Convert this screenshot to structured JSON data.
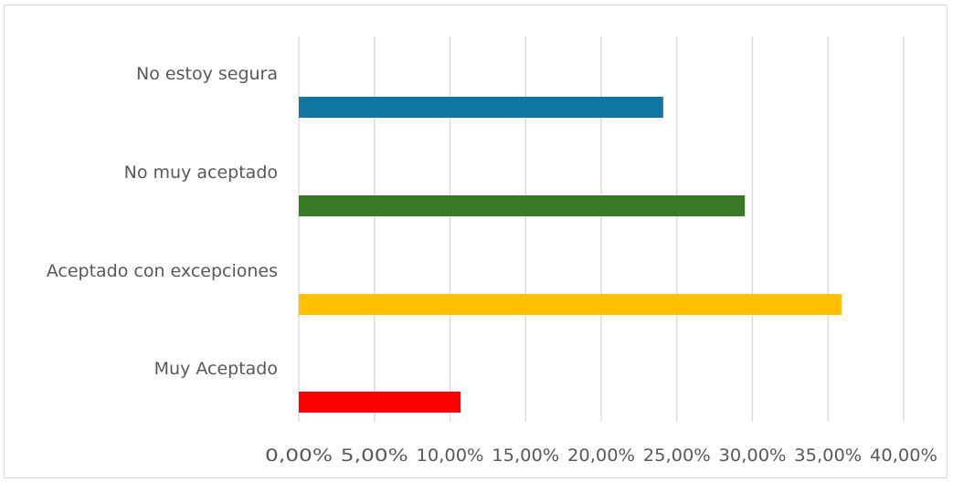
{
  "chart_data": {
    "type": "bar",
    "orientation": "horizontal",
    "title": "",
    "xlabel": "",
    "ylabel": "",
    "categories": [
      "No estoy segura",
      "No muy aceptado",
      "Aceptado con excepciones",
      "Muy Aceptado"
    ],
    "values": [
      24.1,
      29.5,
      35.9,
      10.7
    ],
    "colors": [
      "#0e76a0",
      "#3a7a27",
      "#ffc000",
      "#ff0000"
    ],
    "xlim": [
      0,
      40
    ],
    "xticks": [
      0,
      5,
      10,
      15,
      20,
      25,
      30,
      35,
      40
    ],
    "xtick_labels": [
      "0,00%",
      "5,00%",
      "10,00%",
      "15,00%",
      "20,00%",
      "25,00%",
      "30,00%",
      "35,00%",
      "40,00%"
    ],
    "grid": "vertical",
    "legend": "none"
  }
}
